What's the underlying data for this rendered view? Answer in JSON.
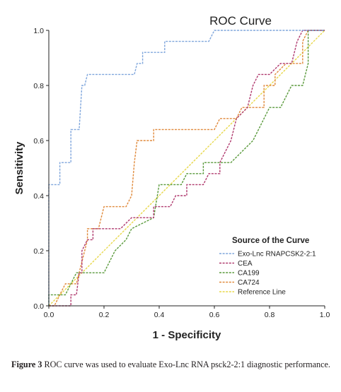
{
  "chart_data": {
    "type": "line",
    "title": "ROC Curve",
    "xlabel": "1 - Specificity",
    "ylabel": "Sensitivity",
    "xlim": [
      0,
      1
    ],
    "ylim": [
      0,
      1
    ],
    "xticks": [
      "0.0",
      "0.2",
      "0.4",
      "0.6",
      "0.8",
      "1.0"
    ],
    "yticks": [
      "0.0",
      "0.2",
      "0.4",
      "0.6",
      "0.8",
      "1.0"
    ],
    "grid": false,
    "legend_position": "bottom-right",
    "legend_title": "Source of the Curve",
    "series": [
      {
        "name": "Exo-Lnc RNAPCSK2-2:1",
        "color": "#7fa6dc",
        "points": [
          [
            0,
            0
          ],
          [
            0,
            0.44
          ],
          [
            0.04,
            0.44
          ],
          [
            0.04,
            0.52
          ],
          [
            0.08,
            0.52
          ],
          [
            0.08,
            0.6
          ],
          [
            0.08,
            0.64
          ],
          [
            0.11,
            0.64
          ],
          [
            0.12,
            0.8
          ],
          [
            0.13,
            0.8
          ],
          [
            0.14,
            0.84
          ],
          [
            0.31,
            0.84
          ],
          [
            0.32,
            0.88
          ],
          [
            0.34,
            0.88
          ],
          [
            0.34,
            0.92
          ],
          [
            0.42,
            0.92
          ],
          [
            0.42,
            0.96
          ],
          [
            0.58,
            0.96
          ],
          [
            0.6,
            1
          ],
          [
            1,
            1
          ]
        ]
      },
      {
        "name": "CEA",
        "color": "#b03a6e",
        "points": [
          [
            0,
            0
          ],
          [
            0.08,
            0
          ],
          [
            0.08,
            0.04
          ],
          [
            0.1,
            0.04
          ],
          [
            0.11,
            0.12
          ],
          [
            0.12,
            0.12
          ],
          [
            0.12,
            0.2
          ],
          [
            0.14,
            0.24
          ],
          [
            0.16,
            0.24
          ],
          [
            0.16,
            0.28
          ],
          [
            0.26,
            0.28
          ],
          [
            0.3,
            0.32
          ],
          [
            0.38,
            0.32
          ],
          [
            0.38,
            0.36
          ],
          [
            0.44,
            0.36
          ],
          [
            0.46,
            0.4
          ],
          [
            0.5,
            0.4
          ],
          [
            0.5,
            0.44
          ],
          [
            0.56,
            0.44
          ],
          [
            0.58,
            0.48
          ],
          [
            0.62,
            0.48
          ],
          [
            0.62,
            0.52
          ],
          [
            0.64,
            0.56
          ],
          [
            0.66,
            0.6
          ],
          [
            0.68,
            0.68
          ],
          [
            0.72,
            0.72
          ],
          [
            0.74,
            0.8
          ],
          [
            0.76,
            0.84
          ],
          [
            0.8,
            0.84
          ],
          [
            0.84,
            0.88
          ],
          [
            0.88,
            0.88
          ],
          [
            0.9,
            0.96
          ],
          [
            0.92,
            1
          ],
          [
            1,
            1
          ]
        ]
      },
      {
        "name": "CA199",
        "color": "#5a9a3c",
        "points": [
          [
            0,
            0
          ],
          [
            0,
            0.04
          ],
          [
            0.06,
            0.04
          ],
          [
            0.08,
            0.08
          ],
          [
            0.1,
            0.12
          ],
          [
            0.2,
            0.12
          ],
          [
            0.22,
            0.16
          ],
          [
            0.24,
            0.2
          ],
          [
            0.28,
            0.24
          ],
          [
            0.3,
            0.28
          ],
          [
            0.38,
            0.32
          ],
          [
            0.4,
            0.44
          ],
          [
            0.48,
            0.44
          ],
          [
            0.5,
            0.48
          ],
          [
            0.56,
            0.48
          ],
          [
            0.56,
            0.52
          ],
          [
            0.66,
            0.52
          ],
          [
            0.7,
            0.56
          ],
          [
            0.74,
            0.6
          ],
          [
            0.76,
            0.64
          ],
          [
            0.8,
            0.72
          ],
          [
            0.84,
            0.72
          ],
          [
            0.88,
            0.8
          ],
          [
            0.92,
            0.8
          ],
          [
            0.94,
            0.88
          ],
          [
            0.94,
            0.96
          ],
          [
            0.94,
            1
          ],
          [
            1,
            1
          ]
        ]
      },
      {
        "name": "CA724",
        "color": "#e08a3c",
        "points": [
          [
            0,
            0
          ],
          [
            0.02,
            0
          ],
          [
            0.04,
            0.04
          ],
          [
            0.06,
            0.08
          ],
          [
            0.1,
            0.08
          ],
          [
            0.12,
            0.16
          ],
          [
            0.14,
            0.24
          ],
          [
            0.14,
            0.28
          ],
          [
            0.18,
            0.28
          ],
          [
            0.2,
            0.36
          ],
          [
            0.28,
            0.36
          ],
          [
            0.3,
            0.4
          ],
          [
            0.31,
            0.52
          ],
          [
            0.32,
            0.6
          ],
          [
            0.38,
            0.6
          ],
          [
            0.38,
            0.64
          ],
          [
            0.56,
            0.64
          ],
          [
            0.6,
            0.64
          ],
          [
            0.62,
            0.68
          ],
          [
            0.68,
            0.68
          ],
          [
            0.7,
            0.72
          ],
          [
            0.78,
            0.72
          ],
          [
            0.78,
            0.8
          ],
          [
            0.82,
            0.8
          ],
          [
            0.82,
            0.84
          ],
          [
            0.86,
            0.88
          ],
          [
            0.92,
            0.88
          ],
          [
            0.92,
            0.96
          ],
          [
            0.94,
            1
          ],
          [
            1,
            1
          ]
        ]
      },
      {
        "name": "Reference Line",
        "color": "#e8d84a",
        "points": [
          [
            0,
            0
          ],
          [
            1,
            1
          ]
        ]
      }
    ]
  },
  "caption": {
    "label": "Figure 3",
    "text": "ROC curve was used to evaluate Exo-Lnc RNA psck2-2:1 diagnostic performance."
  }
}
